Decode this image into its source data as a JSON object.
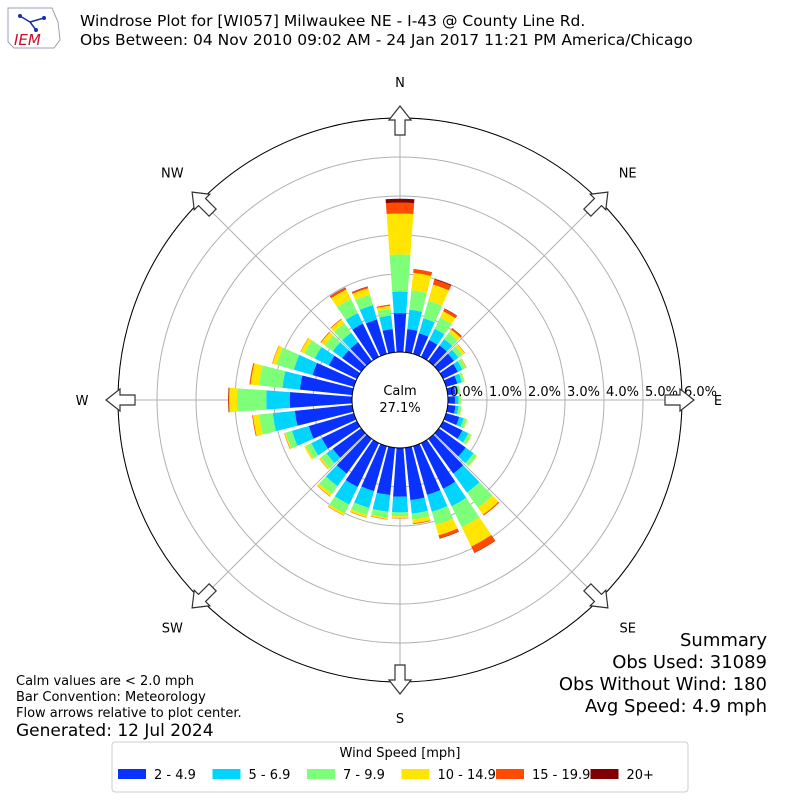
{
  "header": {
    "logo_text": "IEM",
    "title_line1": "Windrose Plot for [WI057] Milwaukee NE - I-43 @ County Line Rd.",
    "title_line2": "Obs Between: 04 Nov 2010 09:02 AM - 24 Jan 2017 11:21 PM America/Chicago"
  },
  "notes": {
    "line1": "Calm values are < 2.0 mph",
    "line2": "Bar Convention: Meteorology",
    "line3": "Flow arrows relative to plot center.",
    "generated": "Generated: 12 Jul 2024"
  },
  "summary": {
    "title": "Summary",
    "obs_used": "Obs Used: 31089",
    "obs_without_wind": "Obs Without Wind: 180",
    "avg_speed": "Avg Speed: 4.9 mph"
  },
  "legend": {
    "title": "Wind Speed [mph]",
    "placement": "bottom-center",
    "items": [
      {
        "label": "2 - 4.9",
        "color": "#0a32ff"
      },
      {
        "label": "5 - 6.9",
        "color": "#00d4ff"
      },
      {
        "label": "7 - 9.9",
        "color": "#7dff7a"
      },
      {
        "label": "10 - 14.9",
        "color": "#ffe500"
      },
      {
        "label": "15 - 19.9",
        "color": "#ff4a00"
      },
      {
        "label": "20+",
        "color": "#800000"
      }
    ]
  },
  "colors": {
    "grid": "#b0b0b0",
    "frame": "#000000",
    "logo": "#c8102e"
  },
  "chart_data": {
    "type": "windrose",
    "calm_label": "Calm",
    "calm_value": "27.1%",
    "radial_unit": "percent",
    "radial_ticks": [
      "0.0%",
      "1.0%",
      "2.0%",
      "3.0%",
      "4.0%",
      "5.0%",
      "6.0%"
    ],
    "radial_range": [
      0,
      6.0
    ],
    "grid": true,
    "compass_labels": {
      "N": "N",
      "NE": "NE",
      "E": "E",
      "SE": "SE",
      "S": "S",
      "SW": "SW",
      "W": "W",
      "NW": "NW"
    },
    "direction_bins_deg": [
      0,
      10,
      20,
      30,
      40,
      50,
      60,
      70,
      80,
      90,
      100,
      110,
      120,
      130,
      140,
      150,
      160,
      170,
      180,
      190,
      200,
      210,
      220,
      230,
      240,
      250,
      260,
      270,
      280,
      290,
      300,
      310,
      320,
      330,
      340,
      350
    ],
    "speed_bins": [
      "2 - 4.9",
      "5 - 6.9",
      "7 - 9.9",
      "10 - 14.9",
      "15 - 19.9",
      "20+"
    ],
    "cumulative_percent": [
      [
        1.0,
        1.55,
        2.5,
        3.55,
        3.83,
        3.93
      ],
      [
        0.6,
        1.1,
        1.6,
        2.05,
        2.15,
        2.15
      ],
      [
        0.55,
        0.95,
        1.42,
        1.85,
        1.98,
        2.0
      ],
      [
        0.48,
        0.8,
        1.12,
        1.3,
        1.37,
        1.38
      ],
      [
        0.5,
        0.7,
        0.9,
        1.0,
        1.04,
        1.05
      ],
      [
        0.48,
        0.62,
        0.75,
        0.82,
        0.83,
        0.83
      ],
      [
        0.42,
        0.55,
        0.64,
        0.66,
        0.67,
        0.67
      ],
      [
        0.3,
        0.42,
        0.48,
        0.5,
        0.5,
        0.5
      ],
      [
        0.2,
        0.28,
        0.32,
        0.33,
        0.33,
        0.33
      ],
      [
        0.18,
        0.27,
        0.33,
        0.34,
        0.34,
        0.34
      ],
      [
        0.2,
        0.28,
        0.35,
        0.36,
        0.36,
        0.36
      ],
      [
        0.35,
        0.47,
        0.55,
        0.57,
        0.57,
        0.57
      ],
      [
        0.55,
        0.72,
        0.8,
        0.82,
        0.82,
        0.82
      ],
      [
        0.85,
        1.1,
        1.2,
        1.22,
        1.22,
        1.22
      ],
      [
        1.1,
        1.7,
        2.18,
        2.4,
        2.43,
        2.43
      ],
      [
        1.3,
        1.8,
        2.4,
        2.95,
        3.12,
        3.13
      ],
      [
        1.3,
        1.75,
        2.1,
        2.38,
        2.46,
        2.47
      ],
      [
        1.35,
        1.7,
        1.85,
        1.95,
        1.97,
        1.97
      ],
      [
        1.25,
        1.65,
        1.75,
        1.8,
        1.81,
        1.81
      ],
      [
        1.22,
        1.65,
        1.8,
        1.84,
        1.85,
        1.85
      ],
      [
        1.2,
        1.65,
        1.84,
        1.9,
        1.91,
        1.91
      ],
      [
        1.25,
        1.75,
        2.0,
        2.06,
        2.07,
        2.07
      ],
      [
        1.1,
        1.5,
        1.75,
        1.82,
        1.83,
        1.83
      ],
      [
        0.9,
        1.1,
        1.28,
        1.32,
        1.33,
        1.33
      ],
      [
        1.0,
        1.3,
        1.45,
        1.5,
        1.5,
        1.5
      ],
      [
        1.2,
        1.65,
        1.82,
        1.85,
        1.86,
        1.86
      ],
      [
        1.48,
        2.05,
        2.4,
        2.56,
        2.58,
        2.58
      ],
      [
        1.6,
        2.2,
        2.95,
        3.15,
        3.17,
        3.18
      ],
      [
        1.35,
        1.8,
        2.4,
        2.62,
        2.65,
        2.65
      ],
      [
        1.1,
        1.6,
        2.06,
        2.17,
        2.18,
        2.18
      ],
      [
        0.8,
        1.2,
        1.5,
        1.6,
        1.61,
        1.61
      ],
      [
        0.6,
        0.9,
        1.15,
        1.27,
        1.29,
        1.29
      ],
      [
        0.6,
        0.9,
        1.2,
        1.32,
        1.34,
        1.34
      ],
      [
        0.95,
        1.25,
        1.65,
        1.92,
        1.97,
        1.98
      ],
      [
        0.92,
        1.3,
        1.58,
        1.75,
        1.79,
        1.8
      ],
      [
        0.6,
        0.95,
        1.12,
        1.2,
        1.23,
        1.23
      ]
    ]
  }
}
